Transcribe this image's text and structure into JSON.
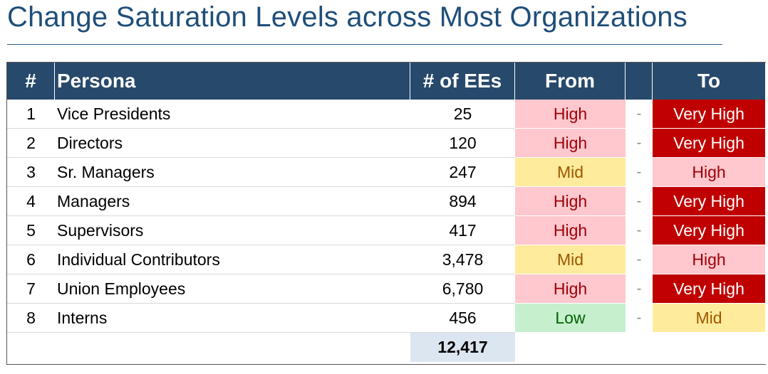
{
  "title": "Change Saturation Levels across Most Organizations",
  "colors": {
    "header_bg": "#27496B",
    "title": "#1F4E79",
    "high_bg": "#FFC7CE",
    "high_fg": "#9C0006",
    "very_high_bg": "#C00000",
    "very_high_fg": "#FFFFFF",
    "mid_bg": "#FFEB9C",
    "mid_fg": "#9C5700",
    "low_bg": "#C6EFCE",
    "low_fg": "#006100",
    "total_bg": "#DCE6F1"
  },
  "table": {
    "headers": {
      "num": "#",
      "persona": "Persona",
      "count": "# of EEs",
      "from": "From",
      "sep": "",
      "to": "To"
    },
    "rows": [
      {
        "num": "1",
        "persona": "Vice Presidents",
        "count": "25",
        "from": "High",
        "sep": "-",
        "to": "Very High"
      },
      {
        "num": "2",
        "persona": "Directors",
        "count": "120",
        "from": "High",
        "sep": "-",
        "to": "Very High"
      },
      {
        "num": "3",
        "persona": "Sr. Managers",
        "count": "247",
        "from": "Mid",
        "sep": "-",
        "to": "High"
      },
      {
        "num": "4",
        "persona": "Managers",
        "count": "894",
        "from": "High",
        "sep": "-",
        "to": "Very High"
      },
      {
        "num": "5",
        "persona": "Supervisors",
        "count": "417",
        "from": "High",
        "sep": "-",
        "to": "Very High"
      },
      {
        "num": "6",
        "persona": "Individual Contributors",
        "count": "3,478",
        "from": "Mid",
        "sep": "-",
        "to": "High"
      },
      {
        "num": "7",
        "persona": "Union Employees",
        "count": "6,780",
        "from": "High",
        "sep": "-",
        "to": "Very High"
      },
      {
        "num": "8",
        "persona": "Interns",
        "count": "456",
        "from": "Low",
        "sep": "-",
        "to": "Mid"
      }
    ],
    "total": "12,417"
  }
}
